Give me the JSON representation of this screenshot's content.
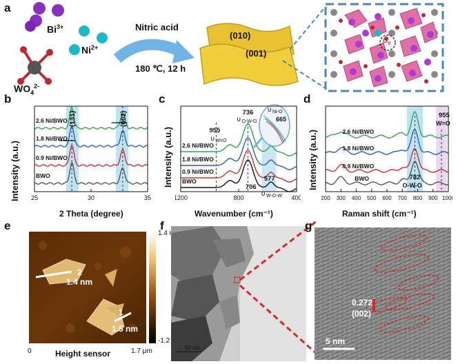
{
  "panels": {
    "a": "a",
    "b": "b",
    "c": "c",
    "d": "d",
    "e": "e",
    "f": "f",
    "g": "g"
  },
  "panel_a": {
    "bi_label": "Bi",
    "bi_charge": "3+",
    "ni_label": "Ni",
    "ni_charge": "2+",
    "wo4_label": "WO",
    "wo4_sub": "4",
    "wo4_charge": "2-",
    "reagent": "Nitric acid",
    "conditions": "180 ℃, 12 h",
    "facet_top": "(010)",
    "facet_bottom": "(001)",
    "ov_label": "O",
    "ov_sub": "V",
    "colors": {
      "bi": "#8a2fc0",
      "ni": "#1bb8c8",
      "w": "#555555",
      "o": "#c0282f",
      "frame": "#4a86b8",
      "sheet": "#e8c233"
    }
  },
  "panel_e": {
    "line1_num": "1",
    "line1_height": "1.5 nm",
    "line2_num": "2",
    "line2_height": "1.4 nm",
    "scale_top": "1.4 nm",
    "scale_bottom": "-1.2 nm",
    "x_start": "0",
    "x_end": "1.7 μm",
    "xlabel": "Height sensor"
  },
  "panel_f": {
    "scalebar": "50 nm"
  },
  "panel_g": {
    "spacing": "0.272",
    "plane": "(002)",
    "scalebar": "5 nm"
  },
  "chart_data": [
    {
      "type": "line",
      "panel": "b",
      "xlabel": "2 Theta (degree)",
      "ylabel": "Intensity (a.u.)",
      "xlim": [
        25,
        35
      ],
      "xticks": [
        "25",
        "30",
        "35"
      ],
      "peak_labels": [
        "(131)",
        "(002)"
      ],
      "peaks_x": [
        28.3,
        32.8
      ],
      "series": [
        {
          "name": "2.6 Ni/BWO",
          "color": "#2aa84a"
        },
        {
          "name": "1.8 Ni/BWO",
          "color": "#2a5cb8"
        },
        {
          "name": "0.9 Ni/BWO",
          "color": "#d42a2a"
        },
        {
          "name": "BWO",
          "color": "#555555"
        }
      ]
    },
    {
      "type": "line",
      "panel": "c",
      "xlabel": "Wavenumber (cm⁻¹)",
      "ylabel": "Intensity (a.u.)",
      "xlim": [
        1200,
        400
      ],
      "xticks": [
        "1200",
        "800",
        "400"
      ],
      "annotations": {
        "a955": "955",
        "a955_mode": "υ",
        "a955_sub": "W=O",
        "a736": "736",
        "a736_mode": "υ",
        "a736_sub": "O-W-O",
        "ani_mode": "υ",
        "ani_sub": "Ni-O",
        "a665": "665",
        "a706": "706",
        "a577": "577",
        "a577_mode": "υ",
        "a577_sub": "W-O-W"
      },
      "series": [
        {
          "name": "2.6 Ni/BWO",
          "color": "#2aa84a"
        },
        {
          "name": "1.8 Ni/BWO",
          "color": "#2a5cb8"
        },
        {
          "name": "0.9 Ni/BWO",
          "color": "#d42a2a"
        },
        {
          "name": "BWO",
          "color": "#111111"
        }
      ]
    },
    {
      "type": "line",
      "panel": "d",
      "xlabel": "Raman shift (cm⁻¹)",
      "ylabel": "Intensity (a.u.)",
      "xlim": [
        200,
        1000
      ],
      "xticks": [
        "200",
        "300",
        "400",
        "500",
        "600",
        "700",
        "800",
        "900",
        "1000"
      ],
      "annotations": {
        "a955": "955",
        "a955_sub": "W=O",
        "a782": "782",
        "a782_sub": "O-W-O"
      },
      "series": [
        {
          "name": "2.6 Ni/BWO",
          "color": "#2aa84a"
        },
        {
          "name": "1.8 Ni/BWO",
          "color": "#2a5cb8"
        },
        {
          "name": "0.9 Ni/BWO",
          "color": "#d42a2a"
        },
        {
          "name": "BWO",
          "color": "#555555"
        }
      ]
    }
  ]
}
